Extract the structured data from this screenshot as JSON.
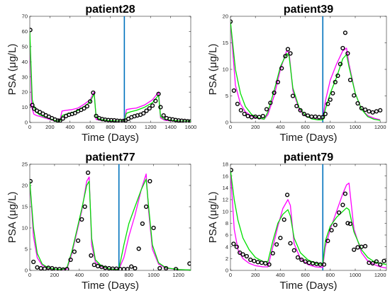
{
  "colors": {
    "measured": "#000000",
    "model_magenta": "#ff00ff",
    "model_green": "#00e000",
    "vline": "#0072bd",
    "axes": "#262626"
  },
  "chart_data": [
    {
      "type": "scatter",
      "title": "patient28",
      "xlabel": "Time (Days)",
      "ylabel": "PSA (μg/L)",
      "xlim": [
        0,
        1600
      ],
      "ylim": [
        0,
        70
      ],
      "xticks": [
        "0",
        "200",
        "400",
        "600",
        "800",
        "1000",
        "1200",
        "1400",
        "1600"
      ],
      "yticks": [
        "0",
        "10",
        "20",
        "30",
        "40",
        "50",
        "60",
        "70"
      ],
      "vline": 940,
      "series": [
        {
          "style": "markers",
          "x": [
            5,
            25,
            45,
            70,
            100,
            130,
            160,
            190,
            220,
            250,
            280,
            300,
            330,
            360,
            390,
            420,
            450,
            480,
            510,
            540,
            570,
            600,
            630,
            660,
            690,
            720,
            750,
            780,
            810,
            840,
            870,
            900,
            930,
            950,
            980,
            1010,
            1040,
            1070,
            1100,
            1130,
            1160,
            1190,
            1220,
            1250,
            1280,
            1300,
            1330,
            1360,
            1390,
            1420,
            1450,
            1480,
            1510,
            1540,
            1570,
            1595
          ],
          "y": [
            61,
            11.5,
            9,
            7.8,
            6.8,
            5.8,
            4.7,
            3.8,
            2.8,
            1.9,
            1.2,
            1.1,
            2.6,
            4.2,
            5.1,
            5.6,
            6.2,
            7.4,
            8.3,
            9.3,
            10.7,
            13.8,
            19.6,
            4.3,
            2.8,
            2.2,
            1.8,
            1.6,
            1.5,
            1.4,
            1.1,
            1.0,
            1.0,
            1.2,
            2.4,
            3.4,
            4.1,
            4.6,
            5.1,
            6.0,
            7.7,
            9.3,
            11.1,
            14.2,
            18.8,
            10.1,
            4.6,
            2.8,
            2.3,
            2.0,
            1.6,
            1.3,
            1.1,
            1.0,
            0.8,
            0.6
          ]
        },
        {
          "style": "line",
          "name_color": "model_magenta",
          "x": [
            0,
            20,
            40,
            70,
            100,
            150,
            200,
            240,
            270,
            300,
            320,
            360,
            420,
            480,
            540,
            600,
            640,
            660,
            700,
            780,
            860,
            940,
            960,
            1000,
            1060,
            1140,
            1220,
            1280,
            1300,
            1340,
            1420,
            1500,
            1600
          ],
          "y": [
            60,
            10,
            5.5,
            4.5,
            4,
            3,
            2,
            1.2,
            1,
            1.2,
            7.5,
            8,
            8.5,
            9.5,
            12,
            15,
            20,
            2,
            1.5,
            0.9,
            0.8,
            0.8,
            8.5,
            9,
            9.5,
            11.5,
            15,
            20,
            3,
            1.5,
            1,
            0.8,
            0.7
          ]
        },
        {
          "style": "line",
          "name_color": "model_green",
          "x": [
            0,
            25,
            60,
            100,
            150,
            200,
            240,
            270,
            300,
            320,
            360,
            420,
            480,
            540,
            600,
            640,
            660,
            700,
            780,
            860,
            940,
            960,
            1000,
            1060,
            1140,
            1220,
            1280,
            1300,
            1340,
            1420,
            1500,
            1600
          ],
          "y": [
            60,
            15,
            7,
            5,
            3.5,
            2.5,
            1.5,
            1,
            1,
            4.5,
            5.5,
            6.5,
            8,
            10.5,
            13.5,
            19,
            3.5,
            2,
            1.2,
            1,
            1,
            6,
            7,
            8,
            10,
            13,
            18,
            4,
            2,
            1.3,
            1,
            0.8
          ]
        }
      ]
    },
    {
      "type": "scatter",
      "title": "patient39",
      "xlabel": "Time (Days)",
      "ylabel": "PSA (μg/L)",
      "xlim": [
        0,
        1250
      ],
      "ylim": [
        0,
        20
      ],
      "xticks": [
        "0",
        "200",
        "400",
        "600",
        "800",
        "1000",
        "1200"
      ],
      "yticks": [
        "0",
        "5",
        "10",
        "15",
        "20"
      ],
      "vline": 740,
      "series": [
        {
          "style": "markers",
          "x": [
            0,
            28,
            56,
            84,
            112,
            140,
            170,
            200,
            230,
            260,
            290,
            320,
            350,
            380,
            410,
            440,
            460,
            480,
            500,
            530,
            560,
            590,
            620,
            650,
            680,
            710,
            740,
            760,
            780,
            800,
            820,
            840,
            860,
            880,
            900,
            920,
            940,
            960,
            990,
            1020,
            1050,
            1080,
            1110,
            1140,
            1170,
            1200
          ],
          "y": [
            19,
            6,
            3.5,
            2.3,
            1.6,
            1.2,
            1.0,
            1.1,
            1.0,
            1.2,
            2.5,
            3.7,
            5.6,
            7.6,
            10.2,
            12.5,
            13.8,
            13.0,
            5.0,
            3.1,
            2.3,
            1.6,
            1.3,
            1.1,
            1.1,
            1.0,
            1.0,
            1.6,
            3.5,
            4.3,
            5.5,
            7.6,
            8.8,
            11.0,
            14.0,
            16.9,
            13.0,
            8.0,
            5.1,
            3.6,
            2.7,
            2.4,
            2.1,
            1.9,
            2.1,
            2.3
          ]
        },
        {
          "style": "line",
          "name_color": "model_magenta",
          "x": [
            0,
            40,
            80,
            120,
            170,
            220,
            270,
            300,
            350,
            400,
            450,
            470,
            500,
            550,
            600,
            650,
            700,
            740,
            760,
            800,
            850,
            900,
            930,
            950,
            1000,
            1050,
            1100,
            1150,
            1200
          ],
          "y": [
            19,
            7,
            3.5,
            2,
            1.2,
            0.8,
            0.6,
            1.5,
            5,
            10,
            13.5,
            13.2,
            6,
            2.5,
            1.2,
            0.8,
            0.6,
            0.6,
            4,
            8,
            11,
            13.5,
            14,
            11,
            5.5,
            2.5,
            1.3,
            0.8,
            0.5
          ]
        },
        {
          "style": "line",
          "name_color": "model_green",
          "x": [
            0,
            40,
            80,
            120,
            170,
            220,
            270,
            300,
            350,
            400,
            450,
            470,
            500,
            550,
            600,
            650,
            700,
            740,
            760,
            800,
            850,
            900,
            930,
            950,
            1000,
            1050,
            1100,
            1150,
            1200
          ],
          "y": [
            19,
            10,
            5.5,
            3,
            1.5,
            0.9,
            0.6,
            2,
            6,
            10.5,
            13,
            12.5,
            6.5,
            2.8,
            1.3,
            0.7,
            0.5,
            0.5,
            2.5,
            5.5,
            8.5,
            12,
            12.8,
            10.5,
            5.5,
            2.5,
            1.1,
            0.6,
            0.4
          ]
        }
      ]
    },
    {
      "type": "scatter",
      "title": "patient77",
      "xlabel": "Time (Days)",
      "ylabel": "PSA (μg/L)",
      "xlim": [
        0,
        1300
      ],
      "ylim": [
        0,
        25
      ],
      "xticks": [
        "0",
        "200",
        "400",
        "600",
        "800",
        "1000",
        "1200"
      ],
      "yticks": [
        "0",
        "5",
        "10",
        "15",
        "20",
        "25"
      ],
      "vline": 720,
      "series": [
        {
          "style": "markers",
          "x": [
            5,
            30,
            60,
            90,
            120,
            150,
            180,
            210,
            240,
            270,
            300,
            330,
            360,
            390,
            420,
            445,
            470,
            495,
            520,
            550,
            580,
            610,
            640,
            670,
            700,
            730,
            760,
            790,
            820,
            850,
            880,
            910,
            940,
            970,
            1000,
            1050,
            1100,
            1180,
            1290
          ],
          "y": [
            21,
            2.0,
            0.7,
            0.5,
            0.4,
            0.6,
            0.5,
            0.3,
            0.3,
            0.2,
            0.3,
            2.5,
            4.4,
            7.0,
            12.0,
            15.0,
            23.0,
            3.5,
            1.3,
            1.0,
            0.8,
            0.6,
            0.5,
            0.4,
            0.4,
            0.3,
            0.3,
            0.3,
            0.9,
            0.5,
            5.1,
            11.0,
            15.0,
            21.0,
            10.0,
            0.5,
            0.5,
            0.3,
            1.6
          ]
        },
        {
          "style": "line",
          "name_color": "model_magenta",
          "x": [
            0,
            30,
            60,
            100,
            150,
            200,
            260,
            300,
            340,
            380,
            420,
            460,
            480,
            500,
            530,
            580,
            640,
            700,
            720,
            760,
            800,
            850,
            900,
            940,
            960,
            990,
            1040,
            1100,
            1200,
            1300
          ],
          "y": [
            21,
            8,
            3,
            1.2,
            0.5,
            0.3,
            0.2,
            0.3,
            4,
            9,
            14,
            21,
            22,
            6,
            2,
            0.8,
            0.4,
            0.3,
            0.3,
            3,
            8,
            13,
            19,
            22.7,
            14,
            5,
            1.5,
            0.5,
            0.2,
            0.1
          ]
        },
        {
          "style": "line",
          "name_color": "model_green",
          "x": [
            0,
            30,
            60,
            100,
            150,
            200,
            260,
            300,
            340,
            380,
            420,
            460,
            480,
            500,
            530,
            580,
            640,
            700,
            720,
            760,
            800,
            850,
            900,
            940,
            960,
            990,
            1040,
            1100,
            1200,
            1300
          ],
          "y": [
            21,
            10,
            4,
            1.5,
            0.6,
            0.3,
            0.2,
            0.6,
            4.5,
            9.5,
            14.5,
            20,
            21,
            7.5,
            2.5,
            1,
            0.4,
            0.2,
            0.3,
            6,
            11,
            15,
            19,
            21.5,
            15,
            6,
            1.8,
            0.6,
            0.2,
            0.1
          ]
        }
      ]
    },
    {
      "type": "scatter",
      "title": "patient79",
      "xlabel": "Time (Days)",
      "ylabel": "PSA (μg/L)",
      "xlim": [
        0,
        1250
      ],
      "ylim": [
        0,
        18
      ],
      "xticks": [
        "0",
        "200",
        "400",
        "600",
        "800",
        "1000",
        "1200"
      ],
      "yticks": [
        "0",
        "2",
        "4",
        "6",
        "8",
        "10",
        "12",
        "14",
        "16",
        "18"
      ],
      "vline": 740,
      "series": [
        {
          "style": "markers",
          "x": [
            5,
            25,
            50,
            75,
            100,
            130,
            160,
            190,
            220,
            250,
            280,
            310,
            340,
            370,
            400,
            430,
            455,
            480,
            510,
            540,
            570,
            600,
            630,
            660,
            690,
            720,
            750,
            780,
            810,
            840,
            870,
            900,
            920,
            940,
            960,
            990,
            1020,
            1050,
            1080,
            1110,
            1140,
            1170,
            1200,
            1230
          ],
          "y": [
            17,
            4.5,
            4.0,
            3.0,
            2.7,
            2.4,
            1.8,
            1.6,
            1.4,
            1.3,
            1.2,
            1.0,
            2.9,
            4.4,
            5.5,
            8.6,
            12.8,
            4.6,
            3.4,
            2.2,
            1.8,
            1.5,
            1.3,
            1.2,
            1.1,
            1.0,
            1.0,
            5.0,
            6.8,
            7.7,
            9.8,
            11.1,
            13.0,
            8.0,
            7.9,
            3.5,
            3.9,
            4.0,
            4.1,
            1.3,
            1.2,
            1.5,
            1.0,
            1.6
          ]
        },
        {
          "style": "line",
          "name_color": "model_magenta",
          "x": [
            0,
            30,
            60,
            100,
            150,
            200,
            260,
            300,
            340,
            380,
            420,
            460,
            480,
            510,
            560,
            620,
            680,
            740,
            760,
            800,
            850,
            900,
            930,
            950,
            990,
            1050,
            1100,
            1150,
            1200,
            1250
          ],
          "y": [
            17,
            7,
            3.5,
            2,
            1.2,
            0.8,
            0.6,
            0.6,
            4,
            7.5,
            10.5,
            12,
            11,
            4.5,
            2,
            1,
            0.6,
            0.5,
            4,
            7,
            10,
            13,
            14.5,
            14.8,
            7,
            3,
            1.6,
            1,
            0.6,
            0.4
          ]
        },
        {
          "style": "line",
          "name_color": "model_green",
          "x": [
            0,
            30,
            60,
            100,
            150,
            200,
            260,
            300,
            340,
            380,
            420,
            460,
            480,
            510,
            560,
            620,
            680,
            740,
            760,
            800,
            850,
            900,
            930,
            950,
            990,
            1050,
            1100,
            1150,
            1200,
            1250
          ],
          "y": [
            17,
            12,
            8.5,
            5.5,
            3.5,
            2.2,
            1.5,
            1.5,
            5,
            8,
            9.5,
            10.3,
            9.2,
            5.5,
            3,
            1.8,
            1.2,
            1,
            5,
            7.5,
            9,
            10,
            10.6,
            10.3,
            6.5,
            3.5,
            2.2,
            1.5,
            1.2,
            1
          ]
        }
      ]
    }
  ]
}
